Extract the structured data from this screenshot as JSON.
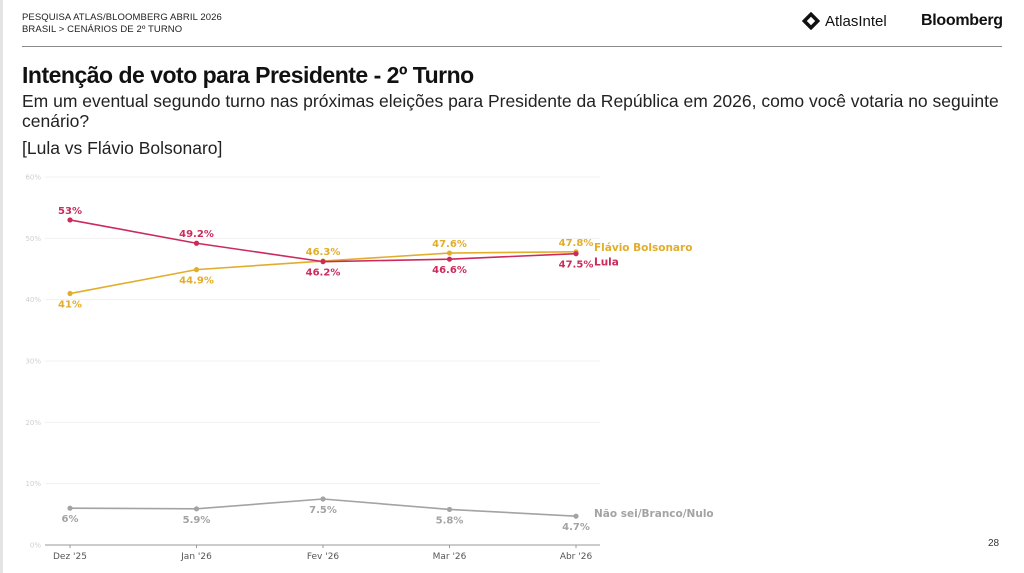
{
  "header": {
    "line1": "PESQUISA ATLAS/BLOOMBERG ABRIL 2026",
    "line2": "BRASIL > CENÁRIOS DE 2º TURNO",
    "logo_atlas": "AtlasIntel",
    "logo_bloomberg": "Bloomberg"
  },
  "title": "Intenção de voto para Presidente - 2º Turno",
  "subtitle": "Em um eventual segundo turno nas próximas eleições para Presidente da República em 2026, como você votaria no seguinte cenário?",
  "scenario": "[Lula vs Flávio Bolsonaro]",
  "page_number": "28",
  "colors": {
    "lula": "#cc2a5c",
    "flavio": "#e2ad2b",
    "nulo": "#a3a3a3"
  },
  "chart_data": {
    "type": "line",
    "title": "Intenção de voto para Presidente - 2º Turno",
    "xlabel": "",
    "ylabel": "",
    "categories": [
      "Dez '25",
      "Jan '26",
      "Fev '26",
      "Mar '26",
      "Abr '26"
    ],
    "ylim": [
      0,
      60
    ],
    "yticks": [
      0,
      10,
      20,
      30,
      40,
      50,
      60
    ],
    "ytick_labels": [
      "0%",
      "10%",
      "20%",
      "30%",
      "40%",
      "50%",
      "60%"
    ],
    "grid": true,
    "legend": "inline-right",
    "series": [
      {
        "name": "Flávio Bolsonaro",
        "color": "#e2ad2b",
        "values": [
          41,
          44.9,
          46.3,
          47.6,
          47.8
        ],
        "labels": [
          "41%",
          "44.9%",
          "46.3%",
          "47.6%",
          "47.8%"
        ],
        "label_pos": [
          "below",
          "below",
          "above",
          "above",
          "above"
        ]
      },
      {
        "name": "Lula",
        "color": "#cc2a5c",
        "values": [
          53,
          49.2,
          46.2,
          46.6,
          47.5
        ],
        "labels": [
          "53%",
          "49.2%",
          "46.2%",
          "46.6%",
          "47.5%"
        ],
        "label_pos": [
          "above",
          "above",
          "below",
          "below",
          "below"
        ]
      },
      {
        "name": "Não sei/Branco/Nulo",
        "color": "#a3a3a3",
        "values": [
          6,
          5.9,
          7.5,
          5.8,
          4.7
        ],
        "labels": [
          "6%",
          "5.9%",
          "7.5%",
          "5.8%",
          "4.7%"
        ],
        "label_pos": [
          "below",
          "below",
          "below",
          "below",
          "below"
        ]
      }
    ]
  }
}
